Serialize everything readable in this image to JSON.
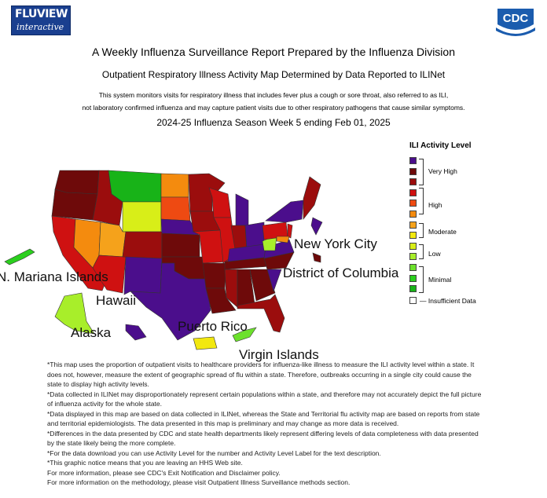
{
  "logos": {
    "fluview_line1": "FLUVIEW",
    "fluview_line2": "interactive",
    "cdc": "CDC"
  },
  "header": {
    "title": "A Weekly Influenza Surveillance Report Prepared by the Influenza Division",
    "subtitle": "Outpatient Respiratory Illness Activity Map Determined by Data Reported to ILINet",
    "description_line1": "This system monitors visits for respiratory illness that includes fever plus a cough or sore throat, also referred to as ILI,",
    "description_line2": "not laboratory confirmed influenza and may capture patient visits due to other respiratory pathogens that cause similar symptoms.",
    "season": "2024-25 Influenza Season Week 5 ending Feb 01, 2025"
  },
  "legend": {
    "title": "ILI Activity Level",
    "levels": [
      {
        "color": "#4b0e8c",
        "group": "Very High"
      },
      {
        "color": "#6e0a0a",
        "group": "Very High"
      },
      {
        "color": "#9b0d0d",
        "group": "Very High"
      },
      {
        "color": "#cf1111",
        "group": "High"
      },
      {
        "color": "#ee4a12",
        "group": "High"
      },
      {
        "color": "#f48b0e",
        "group": "High"
      },
      {
        "color": "#f5a21b",
        "group": "Moderate"
      },
      {
        "color": "#f2e80f",
        "group": "Moderate"
      },
      {
        "color": "#d8ee18",
        "group": "Low"
      },
      {
        "color": "#a8ee2a",
        "group": "Low"
      },
      {
        "color": "#6ce12c",
        "group": "Minimal"
      },
      {
        "color": "#2bcf1e",
        "group": "Minimal"
      },
      {
        "color": "#18b318",
        "group": "Minimal"
      }
    ],
    "groups": [
      "Very High",
      "High",
      "Moderate",
      "Low",
      "Minimal"
    ],
    "insufficient": "Insufficient Data"
  },
  "map_labels": {
    "nyc": "New York City",
    "dc": "District of Columbia",
    "mariana": "N. Mariana Islands",
    "hawaii": "Hawaii",
    "alaska": "Alaska",
    "puerto_rico": "Puerto Rico",
    "virgin_islands": "Virgin Islands"
  },
  "footer": [
    "*This map uses the proportion of outpatient visits to healthcare providers for influenza-like illness to measure the ILI activity level within a state. It does not, however, measure the extent of geographic spread of flu within a state. Therefore, outbreaks occurring in a single city could cause the state to display high activity levels.",
    "*Data collected in ILINet may disproportionately represent certain populations within a state, and therefore may not accurately depict the full picture of influenza activity for the whole state.",
    "*Data displayed in this map are based on data collected in ILINet, whereas the State and Territorial flu activity map are based on reports from state and territorial epidemiologists. The data presented in this map is preliminary and may change as more data is received.",
    "*Differences in the data presented by CDC and state health departments likely represent differing levels of data completeness with data presented by the state likely being the more complete.",
    "*For the data download you can use Activity Level for the number and Activity Level Label for the text description.",
    "*This graphic notice means that you are leaving an HHS Web site.",
    "For more information, please see CDC's Exit Notification and Disclaimer policy.",
    "For more information on the methodology, please visit Outpatient Illness Surveillance methods section."
  ]
}
